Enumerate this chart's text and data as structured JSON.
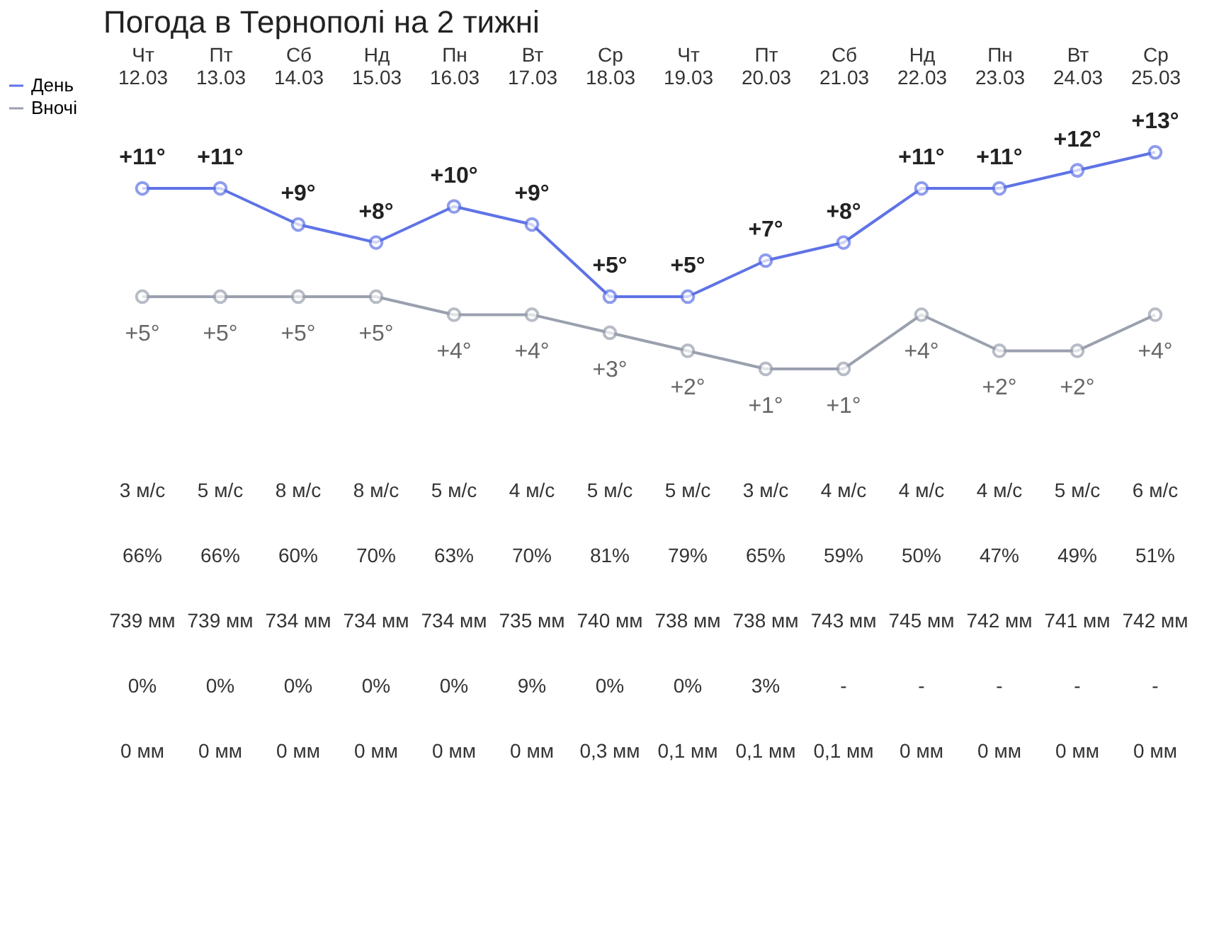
{
  "chart_data": {
    "type": "line",
    "title": "Погода в Тернополі на 2 тижні",
    "categories": [
      "Чт\n12.03",
      "Пт\n13.03",
      "Сб\n14.03",
      "Нд\n15.03",
      "Пн\n16.03",
      "Вт\n17.03",
      "Ср\n18.03",
      "Чт\n19.03",
      "Пт\n20.03",
      "Сб\n21.03",
      "Нд\n22.03",
      "Пн\n23.03",
      "Вт\n24.03",
      "Ср\n25.03"
    ],
    "series": [
      {
        "name": "День",
        "color": "#5f73e6",
        "values": [
          11,
          11,
          9,
          8,
          10,
          9,
          5,
          5,
          7,
          8,
          11,
          11,
          12,
          13
        ],
        "value_labels": [
          "+11°",
          "+11°",
          "+9°",
          "+8°",
          "+10°",
          "+9°",
          "+5°",
          "+5°",
          "+7°",
          "+8°",
          "+11°",
          "+11°",
          "+12°",
          "+13°"
        ]
      },
      {
        "name": "Вночі",
        "color": "#9aa0ae",
        "values": [
          5,
          5,
          5,
          5,
          4,
          4,
          3,
          2,
          1,
          1,
          4,
          2,
          2,
          4
        ],
        "value_labels": [
          "+5°",
          "+5°",
          "+5°",
          "+5°",
          "+4°",
          "+4°",
          "+3°",
          "+2°",
          "+1°",
          "+1°",
          "+4°",
          "+2°",
          "+2°",
          "+4°"
        ]
      }
    ],
    "marker": "circle",
    "legend": "left",
    "grid": false,
    "annotations": [
      "3 м/с",
      "5 м/с",
      "8 м/с",
      "8 м/с",
      "5 м/с",
      "4 м/с",
      "5 м/с",
      "5 м/с",
      "3 м/с",
      "4 м/с",
      "4 м/с",
      "4 м/с",
      "5 м/с",
      "6 м/с",
      "66%",
      "66%",
      "60%",
      "70%",
      "63%",
      "70%",
      "81%",
      "79%",
      "65%",
      "59%",
      "50%",
      "47%",
      "49%",
      "51%",
      "739 мм",
      "739 мм",
      "734 мм",
      "734 мм",
      "734 мм",
      "735 мм",
      "740 мм",
      "738 мм",
      "738 мм",
      "743 мм",
      "745 мм",
      "742 мм",
      "741 мм",
      "742 мм",
      "0%",
      "0%",
      "0%",
      "0%",
      "0%",
      "9%",
      "0%",
      "0%",
      "3%",
      "-",
      "-",
      "-",
      "-",
      "-",
      "0 мм",
      "0 мм",
      "0 мм",
      "0 мм",
      "0 мм",
      "0 мм",
      "0,3 мм",
      "0,1 мм",
      "0,1 мм",
      "0,1 мм",
      "0 мм",
      "0 мм",
      "0 мм",
      "0 мм"
    ]
  }
}
